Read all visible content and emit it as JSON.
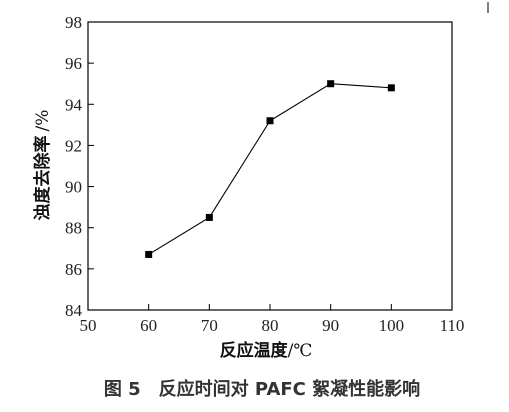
{
  "chart_data": {
    "type": "line",
    "x": [
      60,
      70,
      80,
      90,
      100
    ],
    "series": [
      {
        "values": [
          86.7,
          88.5,
          93.2,
          95.0,
          94.8
        ]
      }
    ],
    "xlabel": "反应温度",
    "xlabel_unit": "/℃",
    "ylabel": "浊度去除率",
    "ylabel_unit": "/%",
    "xlim": [
      50,
      110
    ],
    "ylim": [
      84,
      98
    ],
    "xticks": [
      50,
      60,
      70,
      80,
      90,
      100,
      110
    ],
    "yticks": [
      84,
      86,
      88,
      90,
      92,
      94,
      96,
      98
    ],
    "grid": false,
    "marker": "square",
    "color": "#000000"
  },
  "caption": "图 5　反应时间对 PAFC 絮凝性能影响"
}
